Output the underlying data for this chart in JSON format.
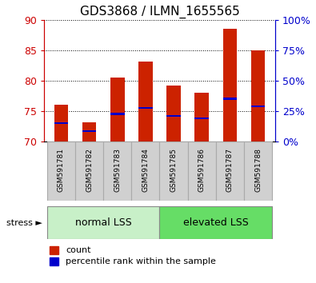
{
  "title": "GDS3868 / ILMN_1655565",
  "categories": [
    "GSM591781",
    "GSM591782",
    "GSM591783",
    "GSM591784",
    "GSM591785",
    "GSM591786",
    "GSM591787",
    "GSM591788"
  ],
  "red_heights": [
    76.1,
    73.2,
    80.5,
    83.2,
    79.2,
    78.0,
    88.5,
    85.0
  ],
  "blue_markers": [
    73.0,
    71.7,
    74.5,
    75.5,
    74.2,
    73.8,
    77.0,
    75.8
  ],
  "ylim_left": [
    70,
    90
  ],
  "ylim_right": [
    0,
    100
  ],
  "yticks_left": [
    70,
    75,
    80,
    85,
    90
  ],
  "yticks_right": [
    0,
    25,
    50,
    75,
    100
  ],
  "ytick_labels_right": [
    "0%",
    "25%",
    "50%",
    "75%",
    "100%"
  ],
  "group1_label": "normal LSS",
  "group2_label": "elevated LSS",
  "group1_color": "#c8f0c8",
  "group2_color": "#66dd66",
  "stress_label": "stress ►",
  "legend_count": "count",
  "legend_percentile": "percentile rank within the sample",
  "bar_color": "#cc2200",
  "marker_color": "#0000cc",
  "bar_width": 0.5,
  "title_fontsize": 11,
  "axis_color_left": "#cc0000",
  "axis_color_right": "#0000cc",
  "bg_color": "#ffffff",
  "gray_box_color": "#d0d0d0",
  "gray_box_edge": "#aaaaaa"
}
